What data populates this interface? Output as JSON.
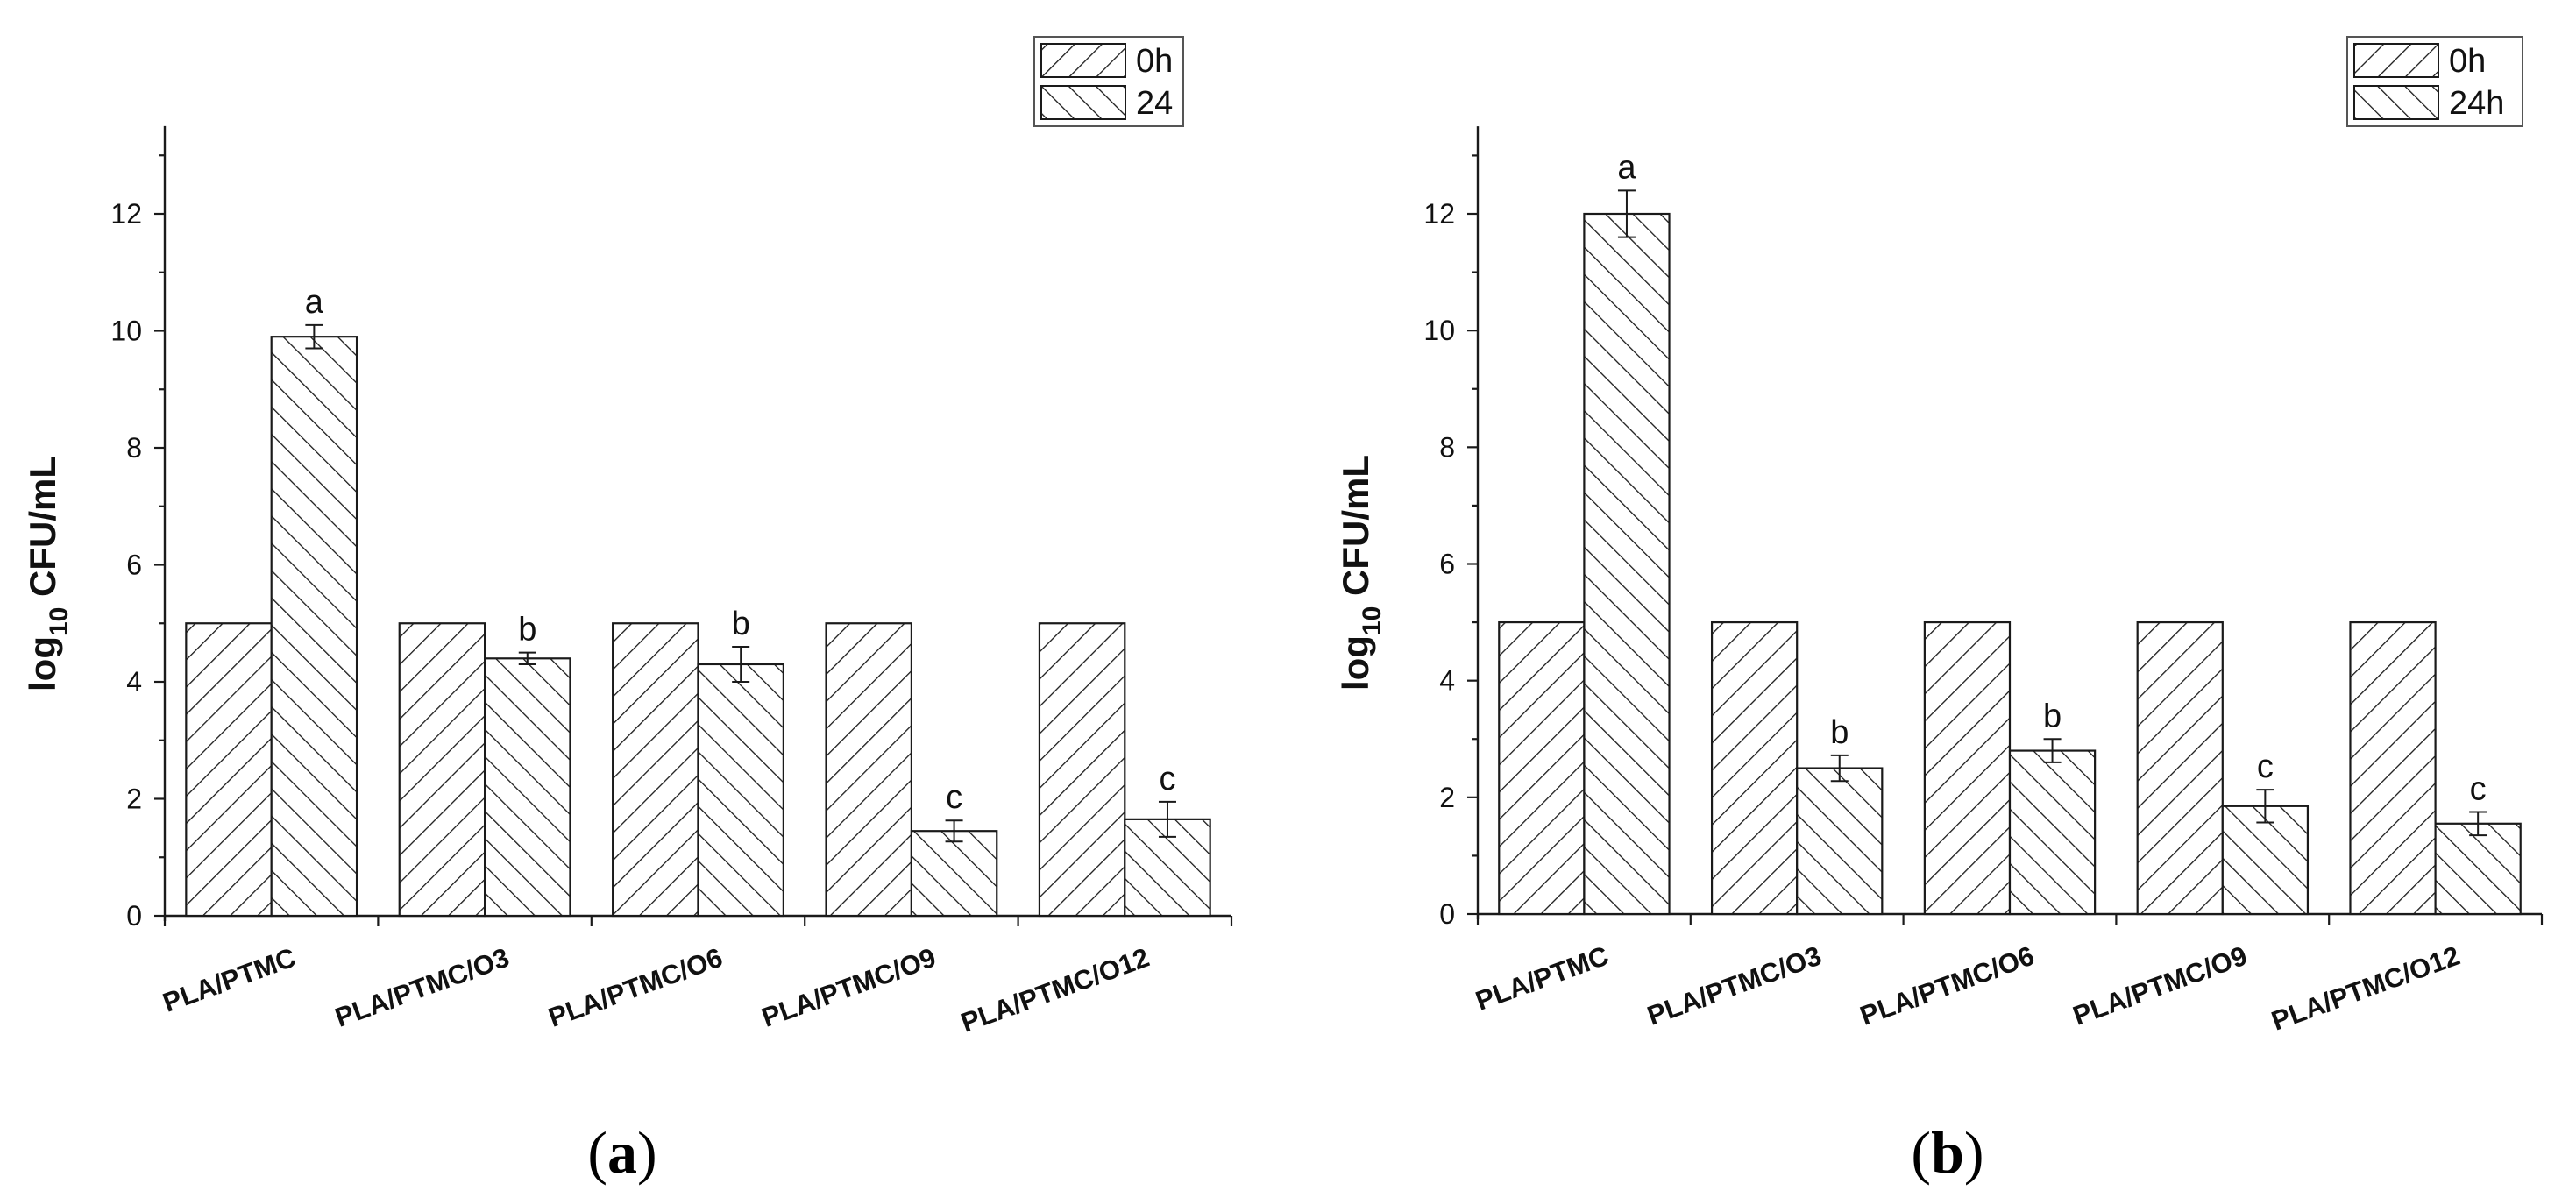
{
  "chart_data": [
    {
      "type": "bar",
      "panel_label": "a",
      "categories": [
        "PLA/PTMC",
        "PLA/PTMC/O3",
        "PLA/PTMC/O6",
        "PLA/PTMC/O9",
        "PLA/PTMC/O12"
      ],
      "series": [
        {
          "name": "0h",
          "values": [
            5,
            5,
            5,
            5,
            5
          ],
          "errors": [
            0,
            0,
            0,
            0,
            0
          ],
          "pattern": "hatch-right"
        },
        {
          "name": "24",
          "values": [
            9.9,
            4.4,
            4.3,
            1.45,
            1.65
          ],
          "errors": [
            0.2,
            0.1,
            0.3,
            0.18,
            0.3
          ],
          "pattern": "hatch-left"
        }
      ],
      "annotations": [
        "a",
        "b",
        "b",
        "c",
        "c"
      ],
      "ylabel_main": "log",
      "ylabel_sub": "10",
      "ylabel_rest": " CFU/mL",
      "xlabel": "",
      "ylim": [
        0,
        13.5
      ],
      "yticks": [
        0,
        2,
        4,
        6,
        8,
        10,
        12
      ],
      "grid": false,
      "legend_position": "top-right"
    },
    {
      "type": "bar",
      "panel_label": "b",
      "categories": [
        "PLA/PTMC",
        "PLA/PTMC/O3",
        "PLA/PTMC/O6",
        "PLA/PTMC/O9",
        "PLA/PTMC/O12"
      ],
      "series": [
        {
          "name": "0h",
          "values": [
            5,
            5,
            5,
            5,
            5
          ],
          "errors": [
            0,
            0,
            0,
            0,
            0
          ],
          "pattern": "hatch-right"
        },
        {
          "name": "24h",
          "values": [
            12,
            2.5,
            2.8,
            1.85,
            1.55
          ],
          "errors": [
            0.4,
            0.22,
            0.2,
            0.28,
            0.2
          ],
          "pattern": "hatch-left"
        }
      ],
      "annotations": [
        "a",
        "b",
        "b",
        "c",
        "c"
      ],
      "ylabel_main": "log",
      "ylabel_sub": "10",
      "ylabel_rest": " CFU/mL",
      "xlabel": "",
      "ylim": [
        0,
        13.5
      ],
      "yticks": [
        0,
        2,
        4,
        6,
        8,
        10,
        12
      ],
      "grid": false,
      "legend_position": "top-right"
    }
  ],
  "colors": {
    "stroke": "#1a1a1a",
    "background": "#ffffff"
  }
}
